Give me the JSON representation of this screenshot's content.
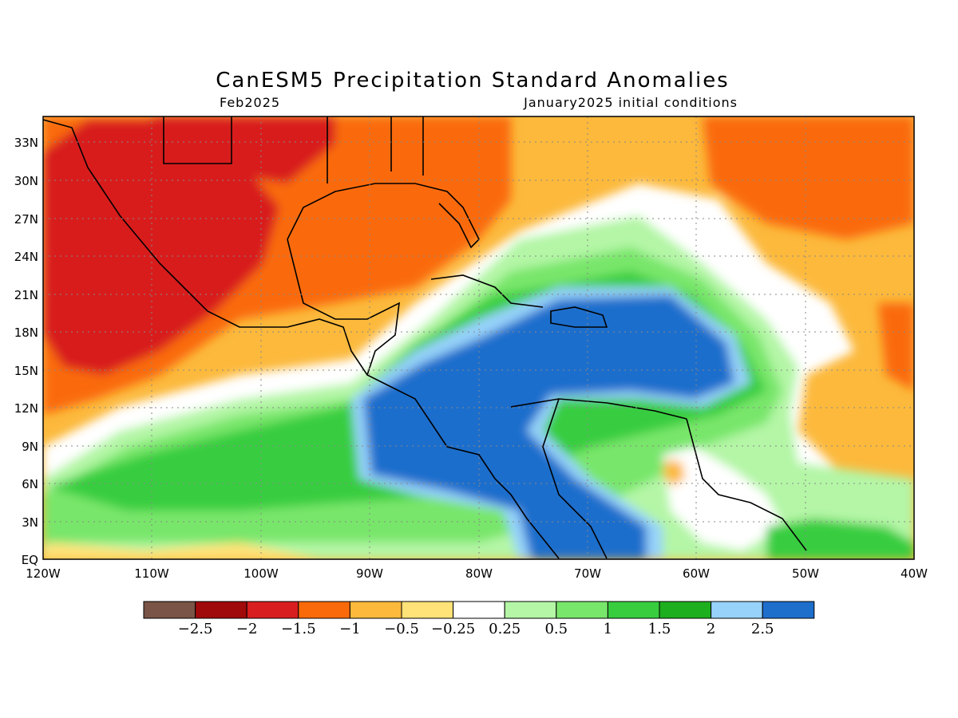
{
  "title": "CanESM5 Precipitation Standard Anomalies",
  "valid_month": "Feb2025",
  "initial_conditions": "January2025 initial conditions",
  "map": {
    "lat_ticks": [
      "33N",
      "30N",
      "27N",
      "24N",
      "21N",
      "18N",
      "15N",
      "12N",
      "9N",
      "6N",
      "3N",
      "EQ"
    ],
    "lon_ticks": [
      "120W",
      "110W",
      "100W",
      "90W",
      "80W",
      "70W",
      "60W",
      "50W",
      "40W"
    ],
    "lat_range": [
      0,
      35
    ],
    "lon_range": [
      -120,
      -40
    ]
  },
  "colorbar": {
    "colors": [
      "#7a5446",
      "#a00a0a",
      "#d81e1e",
      "#fa6a0a",
      "#fcb93c",
      "#ffe278",
      "#ffffff",
      "#b4f6a6",
      "#78e66a",
      "#37cd3f",
      "#1eaf1e",
      "#96d2fa",
      "#1e6ecc"
    ],
    "labels": [
      "-2.5",
      "-2",
      "-1.5",
      "-1",
      "-0.5",
      "-0.25",
      "0.25",
      "0.5",
      "1",
      "1.5",
      "2",
      "2.5"
    ]
  },
  "regions": [
    {
      "name": "wet-core-caribbean",
      "class": 13,
      "lon": -70,
      "lat": 16
    },
    {
      "name": "dry-core-mexico",
      "class": 3,
      "lon": -105,
      "lat": 24
    },
    {
      "name": "dry-west-atlantic",
      "class": 4,
      "lon": -52,
      "lat": 29
    }
  ]
}
